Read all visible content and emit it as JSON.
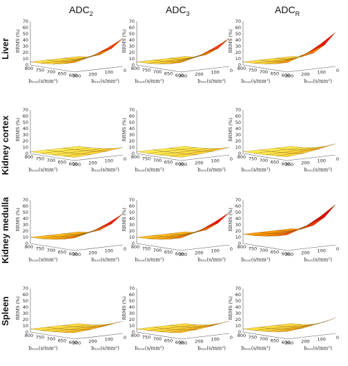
{
  "columns": [
    {
      "main": "ADC",
      "sub": "2"
    },
    {
      "main": "ADC",
      "sub": "3"
    },
    {
      "main": "ADC",
      "sub": "R"
    }
  ],
  "rows": [
    "Liver",
    "Kidney cortex",
    "Kidney medulla",
    "Spleen"
  ],
  "axis_text": {
    "zlabel": "RRMS (%)",
    "xlabel": "bₘₐₓ(s/mm²)",
    "ylabel": "bₘᵢₙ(s/mm²)",
    "z_ticks": [
      "0",
      "10",
      "20",
      "30",
      "40",
      "50",
      "60",
      "70"
    ],
    "x_ticks": [
      "800",
      "750",
      "700",
      "650",
      "600"
    ],
    "y_ticks": [
      "300",
      "200",
      "100",
      "0"
    ]
  },
  "colors": {
    "low": "#ffff66",
    "mid": "#ff9900",
    "high": "#ee0000",
    "max": "#8b0000"
  },
  "chart_data": [
    {
      "type": "surface",
      "row": "Liver",
      "col": "ADC2",
      "zlim": [
        0,
        70
      ],
      "bmax": [
        800,
        750,
        700,
        650,
        600
      ],
      "bmin": [
        300,
        200,
        100,
        0
      ],
      "z_corners": {
        "bmax800_bmin300": 5,
        "bmax800_bmin0": 5,
        "bmax600_bmin300": 15,
        "bmax600_bmin0": 45
      }
    },
    {
      "type": "surface",
      "row": "Liver",
      "col": "ADC3",
      "zlim": [
        0,
        70
      ],
      "bmax": [
        800,
        750,
        700,
        650,
        600
      ],
      "bmin": [
        300,
        200,
        100,
        0
      ],
      "z_corners": {
        "bmax800_bmin300": 5,
        "bmax800_bmin0": 5,
        "bmax600_bmin300": 15,
        "bmax600_bmin0": 45
      }
    },
    {
      "type": "surface",
      "row": "Liver",
      "col": "ADCR",
      "zlim": [
        0,
        70
      ],
      "bmax": [
        800,
        750,
        700,
        650,
        600
      ],
      "bmin": [
        300,
        200,
        100,
        0
      ],
      "z_corners": {
        "bmax800_bmin300": 5,
        "bmax800_bmin0": 5,
        "bmax600_bmin300": 15,
        "bmax600_bmin0": 55
      }
    },
    {
      "type": "surface",
      "row": "Kidney cortex",
      "col": "ADC2",
      "zlim": [
        0,
        70
      ],
      "bmax": [
        800,
        750,
        700,
        650,
        600
      ],
      "bmin": [
        300,
        200,
        100,
        0
      ],
      "z_corners": {
        "bmax800_bmin300": 3,
        "bmax800_bmin0": 3,
        "bmax600_bmin300": 5,
        "bmax600_bmin0": 12
      }
    },
    {
      "type": "surface",
      "row": "Kidney cortex",
      "col": "ADC3",
      "zlim": [
        0,
        70
      ],
      "bmax": [
        800,
        750,
        700,
        650,
        600
      ],
      "bmin": [
        300,
        200,
        100,
        0
      ],
      "z_corners": {
        "bmax800_bmin300": 3,
        "bmax800_bmin0": 3,
        "bmax600_bmin300": 5,
        "bmax600_bmin0": 12
      }
    },
    {
      "type": "surface",
      "row": "Kidney cortex",
      "col": "ADCR",
      "zlim": [
        0,
        70
      ],
      "bmax": [
        800,
        750,
        700,
        650,
        600
      ],
      "bmin": [
        300,
        200,
        100,
        0
      ],
      "z_corners": {
        "bmax800_bmin300": 3,
        "bmax800_bmin0": 3,
        "bmax600_bmin300": 6,
        "bmax600_bmin0": 18
      }
    },
    {
      "type": "surface",
      "row": "Kidney medulla",
      "col": "ADC2",
      "zlim": [
        0,
        70
      ],
      "bmax": [
        800,
        750,
        700,
        650,
        600
      ],
      "bmin": [
        300,
        200,
        100,
        0
      ],
      "z_corners": {
        "bmax800_bmin300": 10,
        "bmax800_bmin0": 10,
        "bmax600_bmin300": 20,
        "bmax600_bmin0": 50
      }
    },
    {
      "type": "surface",
      "row": "Kidney medulla",
      "col": "ADC3",
      "zlim": [
        0,
        70
      ],
      "bmax": [
        800,
        750,
        700,
        650,
        600
      ],
      "bmin": [
        300,
        200,
        100,
        0
      ],
      "z_corners": {
        "bmax800_bmin300": 10,
        "bmax800_bmin0": 10,
        "bmax600_bmin300": 20,
        "bmax600_bmin0": 52
      }
    },
    {
      "type": "surface",
      "row": "Kidney medulla",
      "col": "ADCR",
      "zlim": [
        0,
        70
      ],
      "bmax": [
        800,
        750,
        700,
        650,
        600
      ],
      "bmin": [
        300,
        200,
        100,
        0
      ],
      "z_corners": {
        "bmax800_bmin300": 15,
        "bmax800_bmin0": 15,
        "bmax600_bmin300": 25,
        "bmax600_bmin0": 65
      }
    },
    {
      "type": "surface",
      "row": "Spleen",
      "col": "ADC2",
      "zlim": [
        0,
        70
      ],
      "bmax": [
        800,
        750,
        700,
        650,
        600
      ],
      "bmin": [
        300,
        200,
        100,
        0
      ],
      "z_corners": {
        "bmax800_bmin300": 5,
        "bmax800_bmin0": 5,
        "bmax600_bmin300": 10,
        "bmax600_bmin0": 20
      }
    },
    {
      "type": "surface",
      "row": "Spleen",
      "col": "ADC3",
      "zlim": [
        0,
        70
      ],
      "bmax": [
        800,
        750,
        700,
        650,
        600
      ],
      "bmin": [
        300,
        200,
        100,
        0
      ],
      "z_corners": {
        "bmax800_bmin300": 5,
        "bmax800_bmin0": 5,
        "bmax600_bmin300": 10,
        "bmax600_bmin0": 20
      }
    },
    {
      "type": "surface",
      "row": "Spleen",
      "col": "ADCR",
      "zlim": [
        0,
        70
      ],
      "bmax": [
        800,
        750,
        700,
        650,
        600
      ],
      "bmin": [
        300,
        200,
        100,
        0
      ],
      "z_corners": {
        "bmax800_bmin300": 5,
        "bmax800_bmin0": 5,
        "bmax600_bmin300": 12,
        "bmax600_bmin0": 25
      }
    }
  ]
}
